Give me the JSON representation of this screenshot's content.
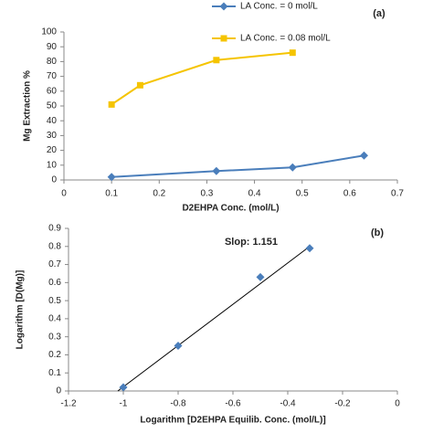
{
  "chart_data": [
    {
      "type": "line",
      "annotations": [
        "(a)"
      ],
      "xlabel": "D2EHPA Conc. (mol/L)",
      "ylabel": "Mg Extraction %",
      "xlim": [
        0,
        0.7
      ],
      "xticks": [
        0,
        0.1,
        0.2,
        0.3,
        0.4,
        0.5,
        0.6,
        0.7
      ],
      "ylim": [
        0,
        100
      ],
      "yticks": [
        0,
        10,
        20,
        30,
        40,
        50,
        60,
        70,
        80,
        90,
        100
      ],
      "grid": false,
      "legend": "top",
      "series": [
        {
          "name": "LA Conc. = 0 mol/L",
          "color": "#4a7ebb",
          "marker": "diamond",
          "x": [
            0.1,
            0.32,
            0.48,
            0.63
          ],
          "values": [
            2,
            6,
            8.5,
            16.5
          ]
        },
        {
          "name": "LA Conc. = 0.08 mol/L",
          "color": "#f5c400",
          "marker": "square",
          "x": [
            0.1,
            0.16,
            0.32,
            0.48
          ],
          "values": [
            51,
            64,
            81,
            86
          ]
        }
      ]
    },
    {
      "type": "scatter",
      "annotations": [
        "(b)",
        "Slop: 1.151"
      ],
      "xlabel": "Logarithm [D2EHPA Equilib. Conc. (mol/L)]",
      "ylabel": "Logarithm [D(Mg)]",
      "xlim": [
        -1.2,
        0
      ],
      "xticks": [
        -1.2,
        -1,
        -0.8,
        -0.6,
        -0.4,
        -0.2,
        0
      ],
      "ylim": [
        0,
        0.9
      ],
      "yticks": [
        0,
        0.1,
        0.2,
        0.3,
        0.4,
        0.5,
        0.6,
        0.7,
        0.8,
        0.9
      ],
      "grid": false,
      "series": [
        {
          "color": "#4a7ebb",
          "marker": "diamond",
          "x": [
            -1.0,
            -0.8,
            -0.5,
            -0.32
          ],
          "values": [
            0.02,
            0.25,
            0.63,
            0.79
          ]
        }
      ],
      "trendline": {
        "color": "#000000",
        "x": [
          -1.02,
          -0.32
        ],
        "values": [
          0,
          0.8
        ]
      }
    }
  ]
}
